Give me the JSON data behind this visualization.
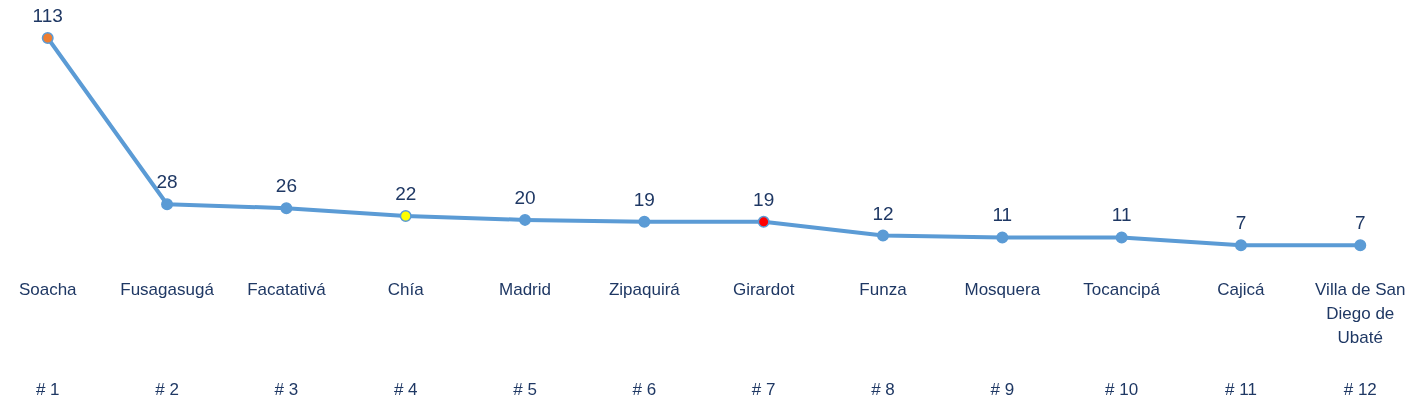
{
  "chart_data": {
    "type": "line",
    "categories": [
      "Soacha",
      "Fusagasugá",
      "Facatativá",
      "Chía",
      "Madrid",
      "Zipaquirá",
      "Girardot",
      "Funza",
      "Mosquera",
      "Tocancipá",
      "Cajicá",
      "Villa de San Diego de Ubaté"
    ],
    "series": [
      {
        "color": "#5b9bd5",
        "values": [
          113,
          28,
          26,
          22,
          20,
          19,
          19,
          12,
          11,
          11,
          7,
          7
        ]
      }
    ],
    "colors": [
      "#ed7d31",
      "#5b9bd5",
      "#5b9bd5",
      "#ffff00",
      "#5b9bd5",
      "#5b9bd5",
      "#ff0000",
      "#5b9bd5",
      "#5b9bd5",
      "#5b9bd5",
      "#5b9bd5",
      "#5b9bd5"
    ],
    "annotations": [
      "# 1",
      "# 2",
      "# 3",
      "# 4",
      "# 5",
      "# 6",
      "# 7",
      "# 8",
      "# 9",
      "# 10",
      "# 11",
      "# 12"
    ],
    "data_labels": true,
    "marker": "circle",
    "line_style": "solid"
  }
}
